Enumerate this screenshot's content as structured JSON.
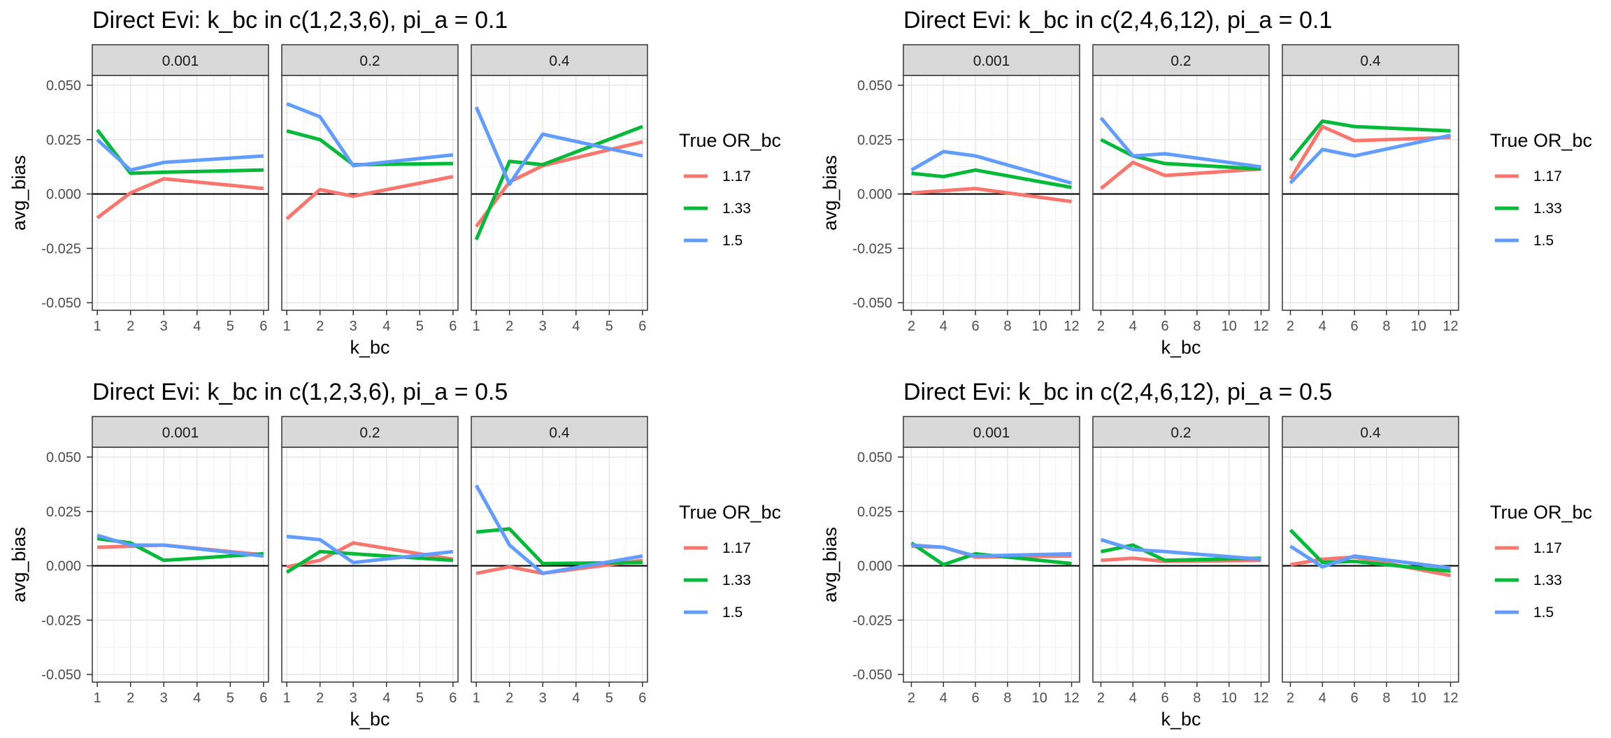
{
  "colors": {
    "1.17": "#F8766D",
    "1.33": "#00BA38",
    "1.5": "#619CFF"
  },
  "chart_data": [
    {
      "type": "line",
      "title": "Direct Evi: k_bc in c(1,2,3,6), pi_a = 0.1",
      "xlabel": "k_bc",
      "ylabel": "avg_bias",
      "x_ticks": [
        1,
        2,
        3,
        4,
        5,
        6
      ],
      "xlim": [
        0.85,
        6.15
      ],
      "y_ticks": [
        -0.05,
        -0.025,
        0,
        0.025,
        0.05
      ],
      "y_tick_labels": [
        "-0.050",
        "-0.025",
        "0.000",
        "0.025",
        "0.050"
      ],
      "ylim": [
        -0.0535,
        0.0545
      ],
      "legend_title": "True OR_bc",
      "legend": [
        "1.17",
        "1.33",
        "1.5"
      ],
      "legend_position": "right",
      "grid": true,
      "x": [
        1,
        2,
        3,
        6
      ],
      "panels": [
        {
          "label": "0.001",
          "series": [
            {
              "name": "1.17",
              "values": [
                -0.011,
                0.0005,
                0.007,
                0.0025
              ]
            },
            {
              "name": "1.33",
              "values": [
                0.0295,
                0.0095,
                0.01,
                0.011
              ]
            },
            {
              "name": "1.5",
              "values": [
                0.025,
                0.011,
                0.0145,
                0.0175
              ]
            }
          ]
        },
        {
          "label": "0.2",
          "series": [
            {
              "name": "1.17",
              "values": [
                -0.0115,
                0.002,
                -0.001,
                0.008
              ]
            },
            {
              "name": "1.33",
              "values": [
                0.029,
                0.025,
                0.0135,
                0.014
              ]
            },
            {
              "name": "1.5",
              "values": [
                0.0415,
                0.0355,
                0.013,
                0.018
              ]
            }
          ]
        },
        {
          "label": "0.4",
          "series": [
            {
              "name": "1.17",
              "values": [
                -0.015,
                0.0055,
                0.013,
                0.024
              ]
            },
            {
              "name": "1.33",
              "values": [
                -0.021,
                0.015,
                0.0135,
                0.031
              ]
            },
            {
              "name": "1.5",
              "values": [
                0.04,
                0.0045,
                0.0275,
                0.0175
              ]
            }
          ]
        }
      ]
    },
    {
      "type": "line",
      "title": "Direct Evi: k_bc in c(2,4,6,12), pi_a = 0.1",
      "xlabel": "k_bc",
      "ylabel": "avg_bias",
      "x_ticks": [
        2,
        4,
        6,
        8,
        10,
        12
      ],
      "xlim": [
        1.5,
        12.5
      ],
      "y_ticks": [
        -0.05,
        -0.025,
        0,
        0.025,
        0.05
      ],
      "y_tick_labels": [
        "-0.050",
        "-0.025",
        "0.000",
        "0.025",
        "0.050"
      ],
      "ylim": [
        -0.0535,
        0.0545
      ],
      "legend_title": "True OR_bc",
      "legend": [
        "1.17",
        "1.33",
        "1.5"
      ],
      "legend_position": "right",
      "grid": true,
      "x": [
        2,
        4,
        6,
        12
      ],
      "panels": [
        {
          "label": "0.001",
          "series": [
            {
              "name": "1.17",
              "values": [
                0.0005,
                0.0015,
                0.0025,
                -0.0035
              ]
            },
            {
              "name": "1.33",
              "values": [
                0.0095,
                0.008,
                0.011,
                0.003
              ]
            },
            {
              "name": "1.5",
              "values": [
                0.011,
                0.0195,
                0.0175,
                0.005
              ]
            }
          ]
        },
        {
          "label": "0.2",
          "series": [
            {
              "name": "1.17",
              "values": [
                0.0025,
                0.0145,
                0.0085,
                0.0115
              ]
            },
            {
              "name": "1.33",
              "values": [
                0.025,
                0.0175,
                0.014,
                0.0115
              ]
            },
            {
              "name": "1.5",
              "values": [
                0.035,
                0.0175,
                0.0185,
                0.0125
              ]
            }
          ]
        },
        {
          "label": "0.4",
          "series": [
            {
              "name": "1.17",
              "values": [
                0.007,
                0.031,
                0.0245,
                0.026
              ]
            },
            {
              "name": "1.33",
              "values": [
                0.0155,
                0.0335,
                0.031,
                0.029
              ]
            },
            {
              "name": "1.5",
              "values": [
                0.005,
                0.0205,
                0.0175,
                0.027
              ]
            }
          ]
        }
      ]
    },
    {
      "type": "line",
      "title": "Direct Evi: k_bc in c(1,2,3,6), pi_a = 0.5",
      "xlabel": "k_bc",
      "ylabel": "avg_bias",
      "x_ticks": [
        1,
        2,
        3,
        4,
        5,
        6
      ],
      "xlim": [
        0.85,
        6.15
      ],
      "y_ticks": [
        -0.05,
        -0.025,
        0,
        0.025,
        0.05
      ],
      "y_tick_labels": [
        "-0.050",
        "-0.025",
        "0.000",
        "0.025",
        "0.050"
      ],
      "ylim": [
        -0.0535,
        0.0545
      ],
      "legend_title": "True OR_bc",
      "legend": [
        "1.17",
        "1.33",
        "1.5"
      ],
      "legend_position": "right",
      "grid": true,
      "x": [
        1,
        2,
        3,
        6
      ],
      "panels": [
        {
          "label": "0.001",
          "series": [
            {
              "name": "1.17",
              "values": [
                0.0085,
                0.009,
                0.0095,
                0.005
              ]
            },
            {
              "name": "1.33",
              "values": [
                0.0125,
                0.0105,
                0.0025,
                0.0055
              ]
            },
            {
              "name": "1.5",
              "values": [
                0.014,
                0.0095,
                0.0095,
                0.0045
              ]
            }
          ]
        },
        {
          "label": "0.2",
          "series": [
            {
              "name": "1.17",
              "values": [
                -0.0005,
                0.0025,
                0.0105,
                0.003
              ]
            },
            {
              "name": "1.33",
              "values": [
                -0.003,
                0.0065,
                0.0055,
                0.0025
              ]
            },
            {
              "name": "1.5",
              "values": [
                0.0135,
                0.012,
                0.0015,
                0.0065
              ]
            }
          ]
        },
        {
          "label": "0.4",
          "series": [
            {
              "name": "1.17",
              "values": [
                -0.0035,
                -0.0005,
                -0.0035,
                0.0025
              ]
            },
            {
              "name": "1.33",
              "values": [
                0.0155,
                0.017,
                0.001,
                0.0015
              ]
            },
            {
              "name": "1.5",
              "values": [
                0.037,
                0.0095,
                -0.0035,
                0.0045
              ]
            }
          ]
        }
      ]
    },
    {
      "type": "line",
      "title": "Direct Evi:  k_bc in c(2,4,6,12), pi_a = 0.5",
      "xlabel": "k_bc",
      "ylabel": "avg_bias",
      "x_ticks": [
        2,
        4,
        6,
        8,
        10,
        12
      ],
      "xlim": [
        1.5,
        12.5
      ],
      "y_ticks": [
        -0.05,
        -0.025,
        0,
        0.025,
        0.05
      ],
      "y_tick_labels": [
        "-0.050",
        "-0.025",
        "0.000",
        "0.025",
        "0.050"
      ],
      "ylim": [
        -0.0535,
        0.0545
      ],
      "legend_title": "True OR_bc",
      "legend": [
        "1.17",
        "1.33",
        "1.5"
      ],
      "legend_position": "right",
      "grid": true,
      "x": [
        2,
        4,
        6,
        12
      ],
      "panels": [
        {
          "label": "0.001",
          "series": [
            {
              "name": "1.17",
              "values": [
                0.009,
                0.0085,
                0.004,
                0.0045
              ]
            },
            {
              "name": "1.33",
              "values": [
                0.0105,
                0.0005,
                0.0055,
                0.001
              ]
            },
            {
              "name": "1.5",
              "values": [
                0.0095,
                0.0085,
                0.0045,
                0.0055
              ]
            }
          ]
        },
        {
          "label": "0.2",
          "series": [
            {
              "name": "1.17",
              "values": [
                0.0025,
                0.0035,
                0.002,
                0.0025
              ]
            },
            {
              "name": "1.33",
              "values": [
                0.0065,
                0.0095,
                0.0025,
                0.0035
              ]
            },
            {
              "name": "1.5",
              "values": [
                0.012,
                0.0075,
                0.0065,
                0.003
              ]
            }
          ]
        },
        {
          "label": "0.4",
          "series": [
            {
              "name": "1.17",
              "values": [
                0.0005,
                0.003,
                0.004,
                -0.0045
              ]
            },
            {
              "name": "1.33",
              "values": [
                0.0165,
                0.0015,
                0.002,
                -0.0025
              ]
            },
            {
              "name": "1.5",
              "values": [
                0.009,
                -0.0005,
                0.0045,
                -0.001
              ]
            }
          ]
        }
      ]
    }
  ]
}
